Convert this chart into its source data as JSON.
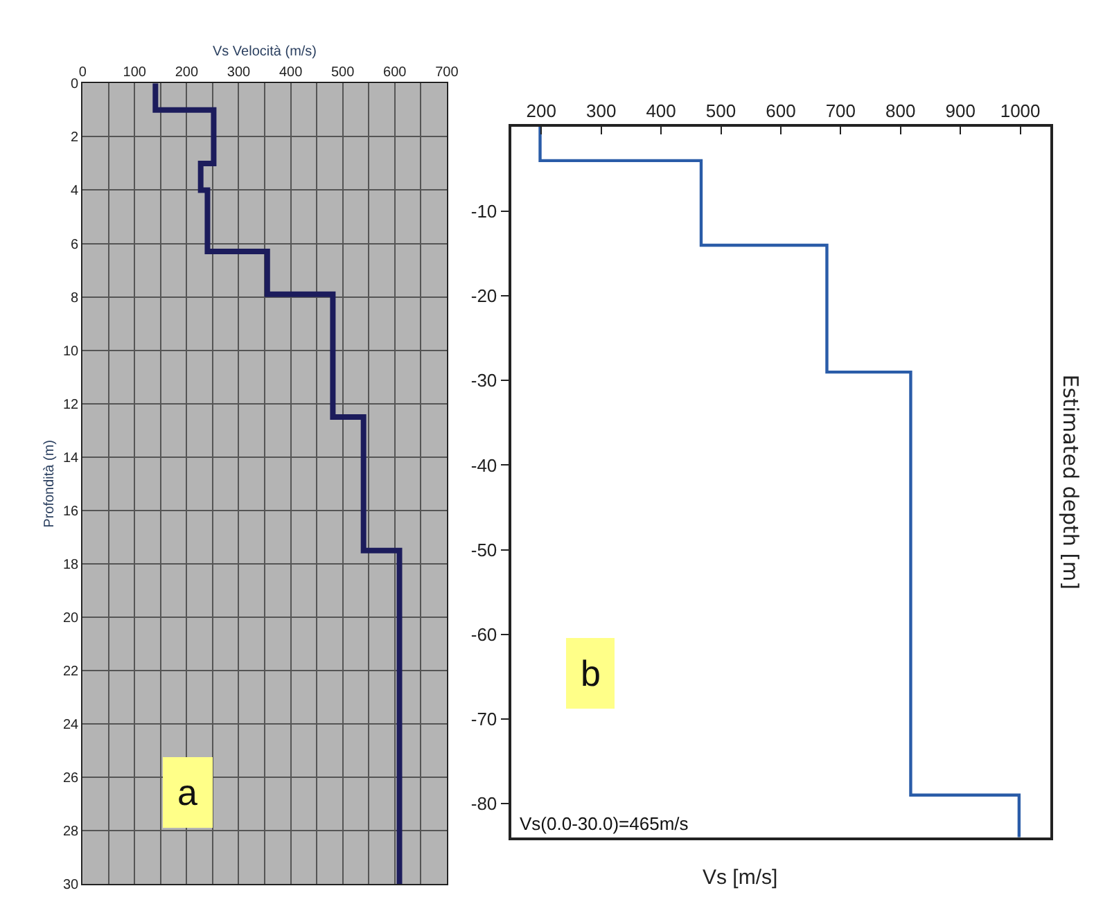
{
  "chart_data": [
    {
      "type": "line",
      "xlabel": "Vs Velocità (m/s)",
      "ylabel": "Profondità (m)",
      "xlim": [
        0,
        700
      ],
      "xticks": [
        0,
        100,
        200,
        300,
        400,
        500,
        600,
        700
      ],
      "ylim": [
        30,
        0
      ],
      "yticks": [
        0,
        2,
        4,
        6,
        8,
        10,
        12,
        14,
        16,
        18,
        20,
        22,
        24,
        26,
        28,
        30
      ],
      "grid": true,
      "marker": "none",
      "line_style": "solid",
      "annotations": [
        "a"
      ],
      "series": [
        {
          "color": "#1c1c5c",
          "x": [
            140,
            140,
            252,
            252,
            227,
            227,
            240,
            240,
            355,
            355,
            481,
            481,
            540,
            540,
            609,
            609
          ],
          "values": [
            0,
            1,
            1,
            3,
            3,
            4,
            4,
            6.3,
            6.3,
            7.9,
            7.9,
            12.5,
            12.5,
            17.5,
            17.5,
            30
          ]
        }
      ]
    },
    {
      "type": "line",
      "xlabel": "Vs [m/s]",
      "ylabel": "Estimated depth [m]",
      "xlim": [
        150,
        1050
      ],
      "xticks": [
        200,
        300,
        400,
        500,
        600,
        700,
        800,
        900,
        1000
      ],
      "ylim": [
        -84,
        0
      ],
      "yticks": [
        -10,
        -20,
        -30,
        -40,
        -50,
        -60,
        -70,
        -80
      ],
      "grid": false,
      "marker": "none",
      "line_style": "solid",
      "annotations": [
        "b",
        "Vs(0.0-30.0)=465m/s"
      ],
      "series": [
        {
          "color": "#2a5ca8",
          "x": [
            198,
            198,
            467,
            467,
            677,
            677,
            817,
            817,
            998,
            998
          ],
          "values": [
            0,
            -4,
            -4,
            -14,
            -14,
            -29,
            -29,
            -79,
            -79,
            -84
          ]
        }
      ]
    }
  ]
}
